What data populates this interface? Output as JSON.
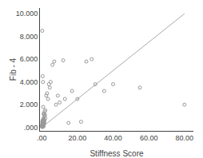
{
  "chart_data": {
    "type": "scatter",
    "xlabel": "Stiffness Score",
    "ylabel": "Fib - 4",
    "xlim": [
      -1,
      85
    ],
    "ylim": [
      -0.3,
      10.5
    ],
    "xticks": [
      {
        "value": 0,
        "label": ".00"
      },
      {
        "value": 20,
        "label": "20.00"
      },
      {
        "value": 40,
        "label": "40.00"
      },
      {
        "value": 60,
        "label": "60.00"
      },
      {
        "value": 80,
        "label": "80.00"
      }
    ],
    "yticks": [
      {
        "value": 0,
        "label": ".000"
      },
      {
        "value": 2,
        "label": "2.000"
      },
      {
        "value": 4,
        "label": "4.000"
      },
      {
        "value": 6,
        "label": "6.000"
      },
      {
        "value": 8,
        "label": "8.000"
      },
      {
        "value": 10,
        "label": "10.000"
      }
    ],
    "grid": false,
    "series": [
      {
        "type": "line",
        "color": "#aaaaaa",
        "line_style": "solid",
        "x": [
          0,
          80
        ],
        "values": [
          0,
          10
        ]
      },
      {
        "type": "scatter",
        "color": "#999999",
        "marker": "circle-open",
        "x": [
          0.1,
          0.2,
          0.2,
          0.3,
          0.3,
          0.3,
          0.4,
          0.4,
          0.4,
          0.5,
          0.5,
          0.5,
          0.5,
          0.6,
          0.6,
          0.6,
          0.7,
          0.7,
          0.7,
          0.8,
          0.8,
          0.8,
          0.9,
          0.9,
          1.0,
          1.0,
          1.0,
          1.0,
          1.1,
          1.1,
          1.2,
          1.2,
          1.3,
          1.4,
          1.5,
          1.5,
          1.6,
          1.8,
          2.0,
          2.0,
          2.5,
          3.0,
          3.5,
          4.0,
          4.5,
          5.0,
          6.0,
          7.0,
          8.0,
          9.0,
          10.0,
          12.0,
          13.0,
          15.0,
          17.0,
          20.0,
          22.0,
          25.0,
          28.0,
          30.0,
          35.0,
          40.0,
          55.0,
          80.0,
          0.3,
          0.5,
          0.6,
          0.7,
          0.8,
          1.0,
          1.2,
          1.5
        ],
        "values": [
          0.1,
          0.05,
          0.2,
          0.1,
          0.3,
          0.5,
          0.1,
          0.2,
          0.4,
          0.1,
          0.2,
          0.4,
          0.6,
          0.1,
          0.3,
          0.5,
          0.1,
          0.3,
          0.6,
          0.2,
          0.4,
          0.7,
          0.2,
          0.5,
          0.1,
          0.3,
          0.5,
          0.8,
          0.2,
          0.6,
          0.3,
          0.7,
          1.2,
          0.4,
          0.6,
          1.0,
          1.4,
          1.1,
          0.8,
          1.5,
          2.8,
          3.0,
          2.5,
          3.8,
          3.5,
          4.0,
          5.5,
          5.8,
          2.0,
          2.8,
          2.2,
          5.9,
          2.5,
          0.4,
          3.2,
          2.5,
          0.5,
          5.8,
          6.0,
          3.8,
          3.2,
          3.8,
          3.5,
          2.0,
          8.5,
          4.5,
          0.05,
          4.0,
          1.8,
          1.2,
          0.5,
          1.0
        ]
      }
    ]
  }
}
